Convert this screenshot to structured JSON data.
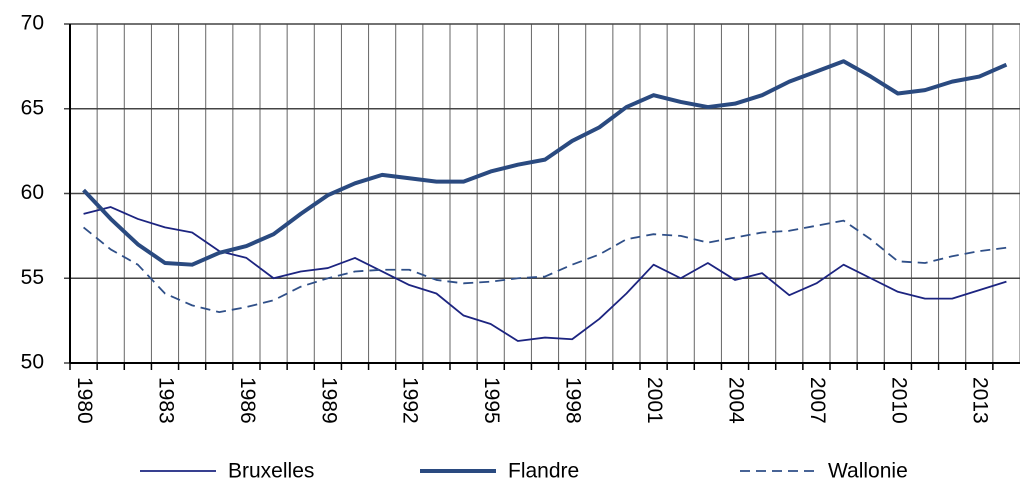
{
  "chart_data": {
    "type": "line",
    "categories": [
      "1980",
      null,
      null,
      "1983",
      null,
      null,
      "1986",
      null,
      null,
      "1989",
      null,
      null,
      "1992",
      null,
      null,
      "1995",
      null,
      null,
      "1998",
      null,
      null,
      "2001",
      null,
      null,
      "2004",
      null,
      null,
      "2007",
      null,
      null,
      "2010",
      null,
      null,
      "2013",
      null
    ],
    "series": [
      {
        "name": "Bruxelles",
        "color": "#1c2480",
        "values": [
          58.8,
          59.2,
          58.5,
          58.0,
          57.7,
          56.6,
          56.2,
          55.0,
          55.4,
          55.6,
          56.2,
          55.4,
          54.6,
          54.1,
          52.8,
          52.3,
          51.3,
          51.5,
          51.4,
          52.6,
          54.1,
          55.8,
          55.0,
          55.9,
          54.9,
          55.3,
          54.0,
          54.7,
          55.8,
          55.0,
          54.2,
          53.8,
          53.8,
          54.3,
          54.8
        ]
      },
      {
        "name": "Flandre",
        "color": "#2a4a80",
        "values": [
          60.2,
          58.5,
          57.0,
          55.9,
          55.8,
          56.5,
          56.9,
          57.6,
          58.8,
          59.9,
          60.6,
          61.1,
          60.9,
          60.7,
          60.7,
          61.3,
          61.7,
          62.0,
          63.1,
          63.9,
          65.1,
          65.8,
          65.4,
          65.1,
          65.3,
          65.8,
          66.6,
          67.2,
          67.8,
          66.9,
          65.9,
          66.1,
          66.6,
          66.9,
          67.6
        ]
      },
      {
        "name": "Wallonie",
        "color": "#2f4f88",
        "values": [
          58.0,
          56.7,
          55.8,
          54.1,
          53.4,
          53.0,
          53.3,
          53.7,
          54.5,
          55.0,
          55.4,
          55.5,
          55.5,
          54.9,
          54.7,
          54.8,
          55.0,
          55.1,
          55.8,
          56.4,
          57.3,
          57.6,
          57.5,
          57.1,
          57.4,
          57.7,
          57.8,
          58.1,
          58.4,
          57.3,
          56.0,
          55.9,
          56.3,
          56.6,
          56.8
        ]
      }
    ],
    "ylim": [
      50,
      70
    ],
    "yticks": [
      50,
      55,
      60,
      65,
      70
    ],
    "grid": true,
    "legend": "bottom"
  }
}
